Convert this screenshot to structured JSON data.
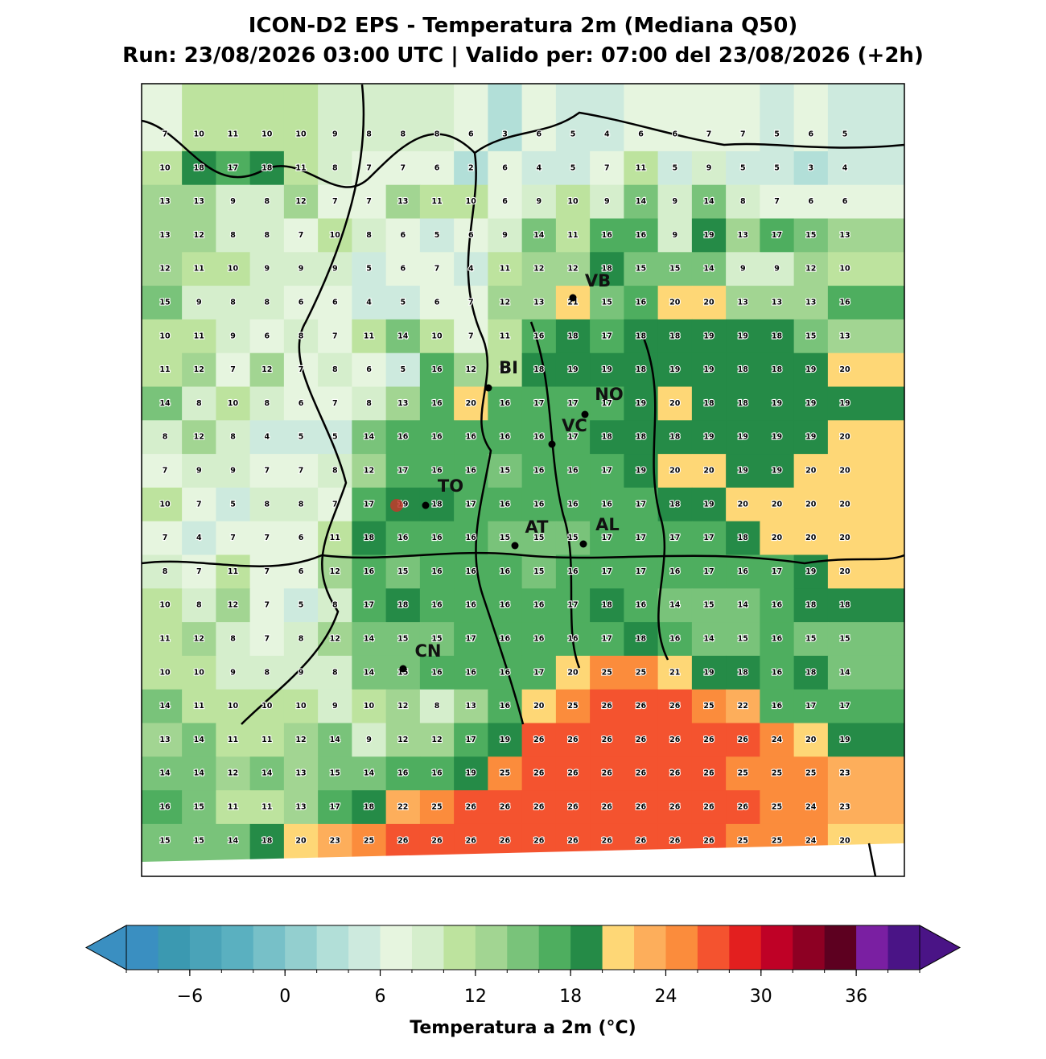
{
  "title": [
    "ICON-D2 EPS - Temperatura 2m (Mediana Q50)",
    "Run: 23/08/2026 03:00 UTC | Valido per: 07:00 del 23/08/2026 (+2h)"
  ],
  "map": {
    "values": [
      [
        7,
        10,
        11,
        10,
        10,
        9,
        8,
        8,
        8,
        6,
        3,
        6,
        5,
        4,
        6,
        6,
        7,
        7,
        5,
        6,
        5
      ],
      [
        10,
        18,
        17,
        18,
        11,
        8,
        7,
        7,
        6,
        2,
        6,
        4,
        5,
        7,
        11,
        5,
        9,
        5,
        5,
        3,
        4
      ],
      [
        13,
        13,
        9,
        8,
        12,
        7,
        7,
        13,
        11,
        10,
        6,
        9,
        10,
        9,
        14,
        9,
        14,
        8,
        7,
        6,
        6
      ],
      [
        13,
        12,
        8,
        8,
        7,
        10,
        8,
        6,
        5,
        6,
        9,
        14,
        11,
        16,
        16,
        9,
        19,
        13,
        17,
        15,
        13
      ],
      [
        12,
        11,
        10,
        9,
        9,
        9,
        5,
        6,
        7,
        4,
        11,
        12,
        12,
        18,
        15,
        15,
        14,
        9,
        9,
        12,
        10
      ],
      [
        15,
        9,
        8,
        8,
        6,
        6,
        4,
        5,
        6,
        7,
        12,
        13,
        21,
        15,
        16,
        20,
        20,
        13,
        13,
        13,
        16
      ],
      [
        10,
        11,
        9,
        6,
        8,
        7,
        11,
        14,
        10,
        7,
        11,
        16,
        18,
        17,
        18,
        18,
        19,
        19,
        18,
        15,
        13
      ],
      [
        11,
        12,
        7,
        12,
        7,
        8,
        6,
        5,
        16,
        12,
        11,
        18,
        19,
        19,
        18,
        19,
        19,
        18,
        18,
        19,
        20
      ],
      [
        14,
        8,
        10,
        8,
        6,
        7,
        8,
        13,
        16,
        20,
        16,
        17,
        17,
        17,
        19,
        20,
        18,
        18,
        19,
        19,
        19
      ],
      [
        8,
        12,
        8,
        4,
        5,
        5,
        14,
        16,
        16,
        16,
        16,
        16,
        17,
        18,
        18,
        18,
        19,
        19,
        19,
        19,
        20
      ],
      [
        7,
        9,
        9,
        7,
        7,
        8,
        12,
        17,
        16,
        16,
        15,
        16,
        16,
        17,
        19,
        20,
        20,
        19,
        19,
        20,
        20
      ],
      [
        10,
        7,
        5,
        8,
        8,
        7,
        17,
        19,
        18,
        17,
        16,
        16,
        16,
        16,
        17,
        18,
        19,
        20,
        20,
        20,
        20
      ],
      [
        7,
        4,
        7,
        7,
        6,
        11,
        18,
        16,
        16,
        16,
        15,
        15,
        15,
        17,
        17,
        17,
        17,
        18,
        20,
        20,
        20
      ],
      [
        8,
        7,
        11,
        7,
        6,
        12,
        16,
        15,
        16,
        16,
        16,
        15,
        16,
        17,
        17,
        16,
        17,
        16,
        17,
        19,
        20
      ],
      [
        10,
        8,
        12,
        7,
        5,
        8,
        17,
        18,
        16,
        16,
        16,
        16,
        17,
        18,
        16,
        14,
        15,
        14,
        16,
        18,
        18
      ],
      [
        11,
        12,
        8,
        7,
        8,
        12,
        14,
        15,
        15,
        17,
        16,
        16,
        16,
        17,
        18,
        16,
        14,
        15,
        16,
        15,
        15
      ],
      [
        10,
        10,
        9,
        8,
        9,
        8,
        14,
        15,
        16,
        16,
        16,
        17,
        20,
        25,
        25,
        21,
        19,
        18,
        16,
        18,
        14
      ],
      [
        14,
        11,
        10,
        10,
        10,
        9,
        10,
        12,
        8,
        13,
        16,
        20,
        25,
        26,
        26,
        26,
        25,
        22,
        16,
        17,
        17
      ],
      [
        13,
        14,
        11,
        11,
        12,
        14,
        9,
        12,
        12,
        17,
        19,
        26,
        26,
        26,
        26,
        26,
        26,
        26,
        24,
        20,
        19
      ],
      [
        14,
        14,
        12,
        14,
        13,
        15,
        14,
        16,
        16,
        19,
        25,
        26,
        26,
        26,
        26,
        26,
        26,
        25,
        25,
        25,
        23
      ],
      [
        16,
        15,
        11,
        11,
        13,
        17,
        18,
        22,
        25,
        26,
        26,
        26,
        26,
        26,
        26,
        26,
        26,
        26,
        25,
        24,
        23
      ],
      [
        15,
        15,
        14,
        18,
        20,
        23,
        25,
        26,
        26,
        26,
        26,
        26,
        26,
        26,
        26,
        26,
        26,
        25,
        25,
        24,
        20
      ]
    ]
  },
  "cities": [
    "VB",
    "BI",
    "NO",
    "VC",
    "TO",
    "AT",
    "AL",
    "CN"
  ],
  "colorbar": {
    "label": "Temperatura a 2m (°C)",
    "clim": [
      -10,
      40
    ],
    "ticks": [
      {
        "value": -6,
        "label": "−6"
      },
      0,
      6,
      12,
      18,
      24,
      30,
      36
    ],
    "under_color": "#3a8fc1",
    "over_color": "#4a1486",
    "colors": [
      "#3a8fc1",
      "#3b99b1",
      "#4aa3b8",
      "#5ab0c0",
      "#77c0c8",
      "#93cfcf",
      "#b2dfd8",
      "#cdeade",
      "#e6f5df",
      "#d5eecc",
      "#bde39e",
      "#a2d592",
      "#79c37a",
      "#4eae5f",
      "#258b47",
      "#fed776",
      "#fdae5b",
      "#fb8c3c",
      "#f4532f",
      "#e31f1f",
      "#bf0126",
      "#8d0023",
      "#5d0020",
      "#7a1fa2",
      "#4a1486"
    ]
  }
}
